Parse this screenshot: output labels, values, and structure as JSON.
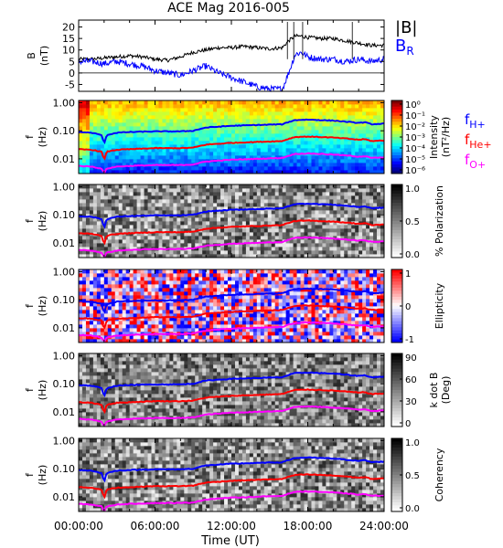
{
  "chart_data": {
    "type": "line",
    "title": "ACE Mag 2016-005",
    "xlabel": "Time (UT)",
    "x_ticks": [
      "00:00:00",
      "06:00:00",
      "12:00:00",
      "18:00:00",
      "24:00:00"
    ],
    "x_range_hours": [
      0,
      24
    ],
    "panels": [
      {
        "name": "field",
        "ylabel": "B (nT)",
        "y_ticks": [
          "20",
          "15",
          "10",
          "5",
          "0",
          "-5"
        ],
        "ylim": [
          -8,
          23
        ],
        "legend": [
          {
            "label": "|B|",
            "color": "#000000"
          },
          {
            "label": "B_R",
            "color": "#0000ff"
          }
        ],
        "series": [
          {
            "name": "|B|",
            "color": "#000000",
            "x": [
              0,
              1,
              2,
              3,
              4,
              5,
              6,
              7,
              8,
              9,
              10,
              11,
              12,
              13,
              14,
              15,
              16,
              16.5,
              17,
              17.5,
              18,
              19,
              20,
              21,
              22,
              23,
              24
            ],
            "y": [
              6,
              6,
              6.5,
              7,
              7.5,
              7,
              6,
              5.5,
              7,
              9,
              10,
              11,
              11,
              11.5,
              11,
              10.5,
              11,
              14,
              16,
              16,
              15.5,
              15,
              15,
              14,
              13,
              12,
              12
            ]
          },
          {
            "name": "B_R",
            "color": "#0000ff",
            "x": [
              0,
              1,
              2,
              3,
              4,
              5,
              6,
              7,
              8,
              9,
              10,
              11,
              12,
              13,
              14,
              15,
              16,
              16.5,
              17,
              17.5,
              18,
              19,
              20,
              21,
              22,
              23,
              24
            ],
            "y": [
              5,
              5,
              4,
              5,
              4,
              3,
              1,
              0,
              -1,
              1,
              3,
              0,
              -2,
              -4,
              -6,
              -7,
              -7,
              0,
              8,
              9,
              7,
              6,
              6,
              5,
              6,
              5,
              6
            ]
          }
        ]
      },
      {
        "name": "intensity",
        "ylabel": "f (Hz)",
        "colorbar_label": "Intensity (nT²/Hz)",
        "colorbar_ticks": [
          "10⁰",
          "10⁻¹",
          "10⁻²",
          "10⁻³",
          "10⁻⁴",
          "10⁻⁵",
          "10⁻⁶"
        ],
        "legend": [
          {
            "label": "f_H+",
            "color": "#0000ff"
          },
          {
            "label": "f_He+",
            "color": "#ff0000"
          },
          {
            "label": "f_O+",
            "color": "#ff00ff"
          }
        ]
      },
      {
        "name": "polarization",
        "ylabel": "f (Hz)",
        "colorbar_label": "% Polarization",
        "colorbar_ticks": [
          "1.0",
          "0.5",
          "0.0"
        ]
      },
      {
        "name": "ellipticity",
        "ylabel": "f (Hz)",
        "colorbar_label": "Ellipticity",
        "colorbar_ticks": [
          "1",
          "0",
          "-1"
        ]
      },
      {
        "name": "kdotb",
        "ylabel": "f (Hz)",
        "colorbar_label": "k dot B (Deg)",
        "colorbar_ticks": [
          "90",
          "60",
          "30",
          "0"
        ]
      },
      {
        "name": "coherency",
        "ylabel": "f (Hz)",
        "colorbar_label": "Coherency",
        "colorbar_ticks": [
          "1.0",
          "0.5",
          "0.0"
        ]
      }
    ],
    "freq_axis": {
      "scale": "log",
      "ylim_hz": [
        0.003,
        1.2
      ],
      "ticks": [
        "1.00",
        "0.10",
        "0.01"
      ]
    },
    "gyro_series": [
      {
        "name": "f_H+",
        "color": "#0000ff",
        "x": [
          0,
          1,
          1.8,
          2,
          2.2,
          3,
          4,
          6,
          8,
          9,
          10,
          12,
          14,
          16,
          17,
          18,
          19,
          20,
          21,
          22,
          22.5,
          23,
          24
        ],
        "y": [
          0.09,
          0.085,
          0.07,
          0.03,
          0.07,
          0.085,
          0.09,
          0.095,
          0.095,
          0.1,
          0.13,
          0.15,
          0.16,
          0.17,
          0.24,
          0.25,
          0.24,
          0.23,
          0.21,
          0.19,
          0.2,
          0.17,
          0.18
        ]
      },
      {
        "name": "f_He+",
        "color": "#ff0000",
        "x": [
          0,
          1,
          1.8,
          2,
          2.2,
          3,
          4,
          6,
          8,
          9,
          10,
          12,
          14,
          16,
          17,
          18,
          19,
          20,
          21,
          22,
          22.5,
          23,
          24
        ],
        "y": [
          0.022,
          0.021,
          0.018,
          0.008,
          0.018,
          0.021,
          0.022,
          0.024,
          0.024,
          0.025,
          0.032,
          0.037,
          0.04,
          0.043,
          0.06,
          0.062,
          0.06,
          0.057,
          0.053,
          0.048,
          0.05,
          0.043,
          0.045
        ]
      },
      {
        "name": "f_O+",
        "color": "#ff00ff",
        "x": [
          0,
          1,
          1.8,
          2,
          2.2,
          3,
          4,
          6,
          8,
          9,
          10,
          12,
          14,
          16,
          17,
          18,
          19,
          20,
          21,
          22,
          22.5,
          23,
          24
        ],
        "y": [
          0.0056,
          0.0053,
          0.0045,
          0.003,
          0.0045,
          0.0053,
          0.0056,
          0.006,
          0.006,
          0.0063,
          0.008,
          0.0093,
          0.01,
          0.0108,
          0.015,
          0.0155,
          0.015,
          0.0142,
          0.0132,
          0.012,
          0.0125,
          0.0108,
          0.0112
        ]
      }
    ]
  }
}
